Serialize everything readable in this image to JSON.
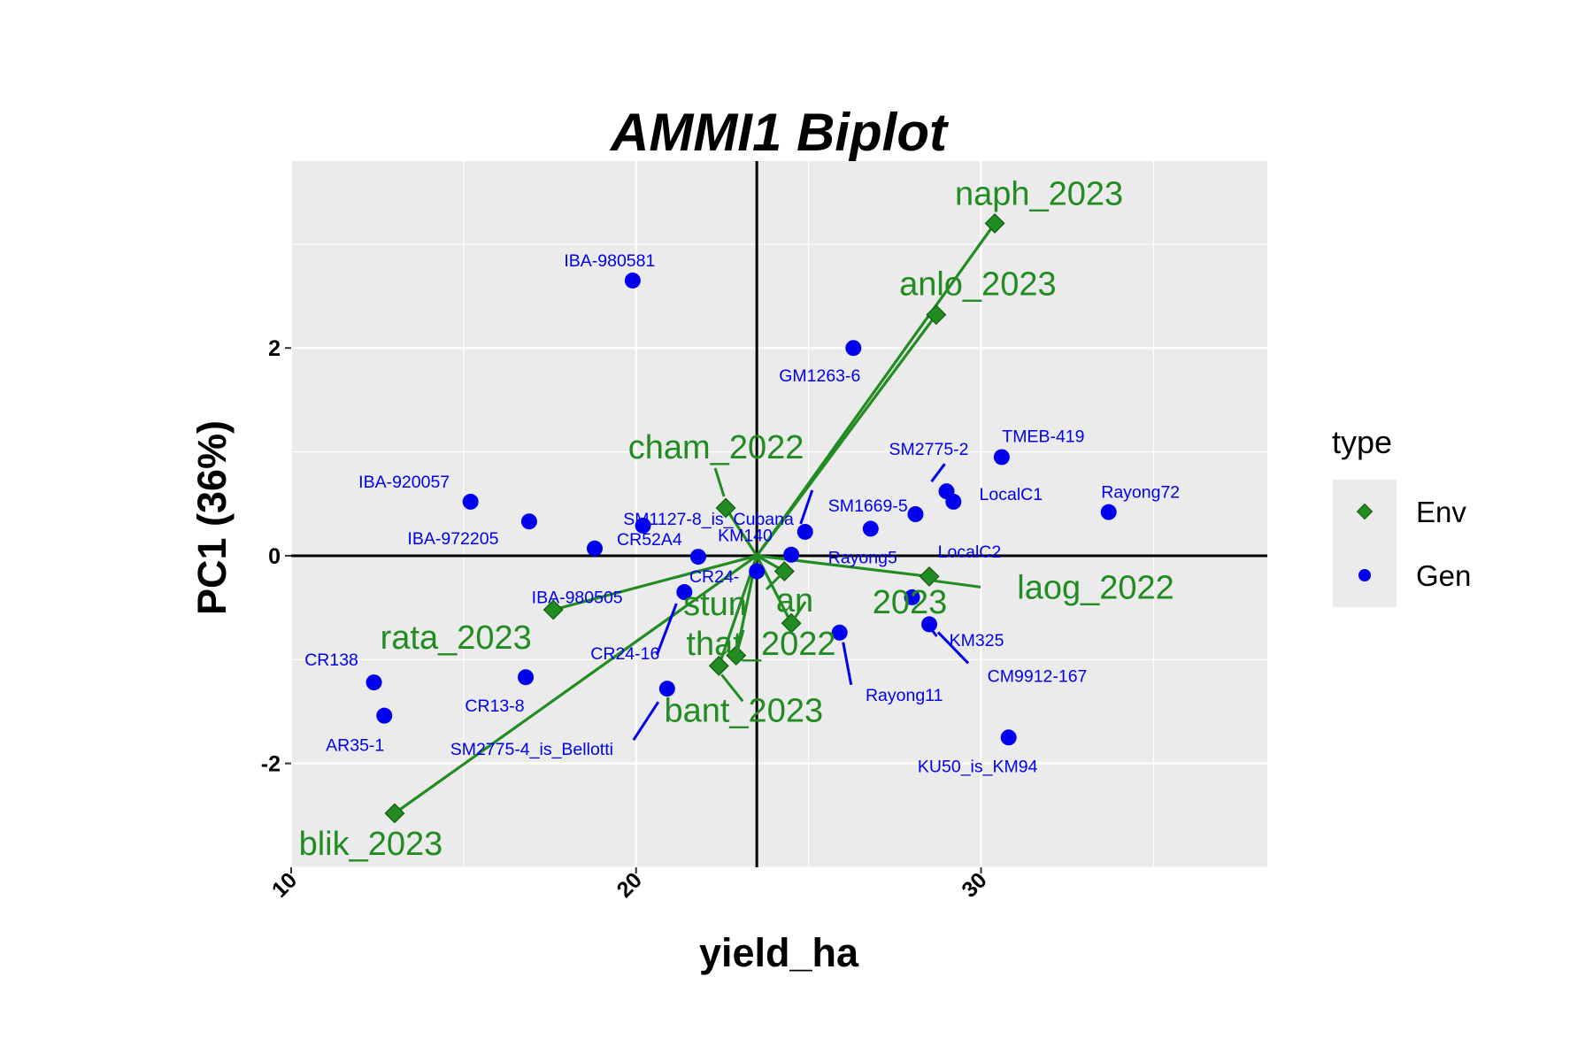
{
  "chart_data": {
    "type": "scatter",
    "title": "AMMI1 Biplot",
    "xlabel": "yield_ha",
    "ylabel": "PC1 (36%)",
    "xlim": [
      10,
      38.3
    ],
    "ylim": [
      -3.0,
      3.8
    ],
    "x_ticks": [
      10,
      20,
      30
    ],
    "x_tick_labels": [
      "10",
      "20",
      "30"
    ],
    "y_ticks": [
      -2,
      0,
      2
    ],
    "y_tick_labels": [
      "-2",
      "0",
      "2"
    ],
    "grid": true,
    "legend": {
      "title": "type",
      "placement": "right",
      "entries": [
        "Env",
        "Gen"
      ]
    },
    "reference_lines": {
      "x": 23.5,
      "y": 0
    },
    "colors": {
      "Env": "#228b22",
      "Gen": "#0000ee",
      "panel": "#ebebeb",
      "grid": "#ffffff",
      "axis": "#000000"
    },
    "series": [
      {
        "name": "Env",
        "points": [
          {
            "label": "naph_2023",
            "x": 30.4,
            "y": 3.2
          },
          {
            "label": "anlo_2023",
            "x": 28.7,
            "y": 2.32
          },
          {
            "label": "cham_2022",
            "x": 22.6,
            "y": 0.46
          },
          {
            "label": "laog_2022",
            "x": 28.5,
            "y": -0.2
          },
          {
            "label": "rata_2023",
            "x": 17.6,
            "y": -0.52
          },
          {
            "label": "stun_2023",
            "x": 24.3,
            "y": -0.15
          },
          {
            "label": "dkam_2023",
            "x": 24.5,
            "y": -0.65
          },
          {
            "label": "that_2022",
            "x": 22.9,
            "y": -0.96
          },
          {
            "label": "bant_2023",
            "x": 22.4,
            "y": -1.06
          },
          {
            "label": "blik_2023",
            "x": 13.0,
            "y": -2.48
          }
        ],
        "overlapping_labels": [
          "stun_2023",
          "dkam_2023",
          "that_2022"
        ],
        "overlapping_text": [
          "stun",
          "an",
          "2023",
          "that_2022"
        ]
      },
      {
        "name": "Gen",
        "points": [
          {
            "label": "IBA-980581",
            "x": 19.9,
            "y": 2.65
          },
          {
            "label": "GM1263-6",
            "x": 26.3,
            "y": 2.0
          },
          {
            "label": "TMEB-419",
            "x": 30.6,
            "y": 0.95
          },
          {
            "label": "SM2775-2",
            "x": 29.0,
            "y": 0.62
          },
          {
            "label": "LocalC1",
            "x": 29.2,
            "y": 0.52
          },
          {
            "label": "Rayong72",
            "x": 33.7,
            "y": 0.42
          },
          {
            "label": "LocalC2",
            "x": 28.1,
            "y": 0.4
          },
          {
            "label": "IBA-920057",
            "x": 15.2,
            "y": 0.52
          },
          {
            "label": "SM1127-8_is_Cubana",
            "x": 20.2,
            "y": 0.29
          },
          {
            "label": "IBA-972205",
            "x": 16.9,
            "y": 0.33
          },
          {
            "label": "SM1669-5",
            "x": 24.9,
            "y": 0.23
          },
          {
            "label": "Rayong5",
            "x": 26.8,
            "y": 0.26
          },
          {
            "label": "KM140",
            "x": 18.8,
            "y": 0.07
          },
          {
            "label": "CR52A4",
            "x": 21.8,
            "y": -0.01
          },
          {
            "label": "CR24-",
            "x": 24.5,
            "y": 0.01
          },
          {
            "label": "IBA-980505",
            "x": 23.5,
            "y": -0.15
          },
          {
            "label": "CR24-16",
            "x": 21.4,
            "y": -0.35
          },
          {
            "label": "KM325",
            "x": 28.0,
            "y": -0.4
          },
          {
            "label": "CM9912-167",
            "x": 28.5,
            "y": -0.66
          },
          {
            "label": "Rayong11",
            "x": 25.9,
            "y": -0.74
          },
          {
            "label": "CR138",
            "x": 12.4,
            "y": -1.22
          },
          {
            "label": "CR13-8",
            "x": 16.8,
            "y": -1.17
          },
          {
            "label": "SM2775-4_is_Bellotti",
            "x": 20.9,
            "y": -1.28
          },
          {
            "label": "AR35-1",
            "x": 12.7,
            "y": -1.54
          },
          {
            "label": "KU50_is_KM94",
            "x": 30.8,
            "y": -1.75
          }
        ]
      }
    ]
  }
}
